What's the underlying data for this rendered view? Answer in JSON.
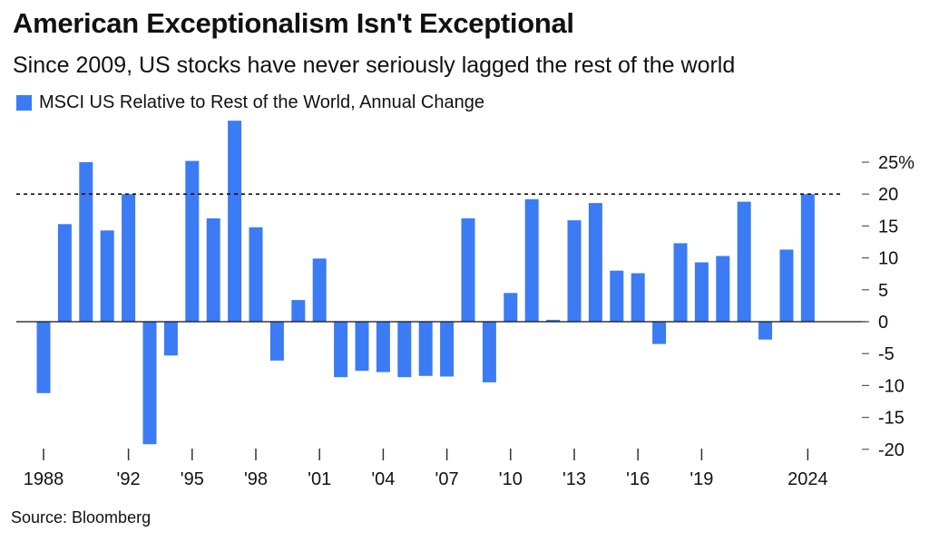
{
  "title": "American Exceptionalism Isn't Exceptional",
  "subtitle": "Since 2009, US stocks have never seriously lagged the rest of the world",
  "source": "Source: Bloomberg",
  "colors": {
    "bar": "#3b7bf4",
    "text": "#111111",
    "zero_line": "#111111",
    "reference_line": "#111111"
  },
  "chart_data": {
    "type": "bar",
    "series": [
      {
        "name": "MSCI US Relative to Rest of the World, Annual Change",
        "values": [
          -11.2,
          15.3,
          25.0,
          14.3,
          20.0,
          -19.2,
          -5.3,
          25.2,
          16.2,
          31.5,
          14.8,
          -6.1,
          3.4,
          9.9,
          -8.7,
          -7.7,
          -7.9,
          -8.7,
          -8.5,
          -8.6,
          16.2,
          -9.5,
          4.5,
          19.2,
          0.3,
          15.9,
          18.6,
          8.0,
          7.6,
          -3.5,
          12.3,
          9.3,
          10.3,
          18.8,
          -2.8,
          11.3,
          20.0
        ]
      }
    ],
    "categories": [
      "1988",
      "1989",
      "1990",
      "1991",
      "1992",
      "1993",
      "1994",
      "1995",
      "1996",
      "1997",
      "1998",
      "1999",
      "2000",
      "2001",
      "2002",
      "2003",
      "2004",
      "2005",
      "2006",
      "2007",
      "2008",
      "2009",
      "2010",
      "2011",
      "2012",
      "2013",
      "2014",
      "2015",
      "2016",
      "2017",
      "2018",
      "2019",
      "2020",
      "2021",
      "2022",
      "2023",
      "2024"
    ],
    "x_tick_labels": [
      {
        "category": "1988",
        "label": "1988"
      },
      {
        "category": "1992",
        "label": "'92"
      },
      {
        "category": "1995",
        "label": "'95"
      },
      {
        "category": "1998",
        "label": "'98"
      },
      {
        "category": "2001",
        "label": "'01"
      },
      {
        "category": "2004",
        "label": "'04"
      },
      {
        "category": "2007",
        "label": "'07"
      },
      {
        "category": "2010",
        "label": "'10"
      },
      {
        "category": "2013",
        "label": "'13"
      },
      {
        "category": "2016",
        "label": "'16"
      },
      {
        "category": "2019",
        "label": "'19"
      },
      {
        "category": "2024",
        "label": "2024"
      }
    ],
    "y_ticks": [
      {
        "value": 25,
        "label": "25%"
      },
      {
        "value": 20,
        "label": "20"
      },
      {
        "value": 15,
        "label": "15"
      },
      {
        "value": 10,
        "label": "10"
      },
      {
        "value": 5,
        "label": "5"
      },
      {
        "value": 0,
        "label": "0"
      },
      {
        "value": -5,
        "label": "-5"
      },
      {
        "value": -10,
        "label": "-10"
      },
      {
        "value": -15,
        "label": "-15"
      },
      {
        "value": -20,
        "label": "-20"
      }
    ],
    "ylim": [
      -20,
      31.5
    ],
    "reference_line": {
      "value": 20,
      "style": "dashed"
    },
    "grid": false,
    "legend_position": "top-left",
    "y_axis_side": "right"
  }
}
